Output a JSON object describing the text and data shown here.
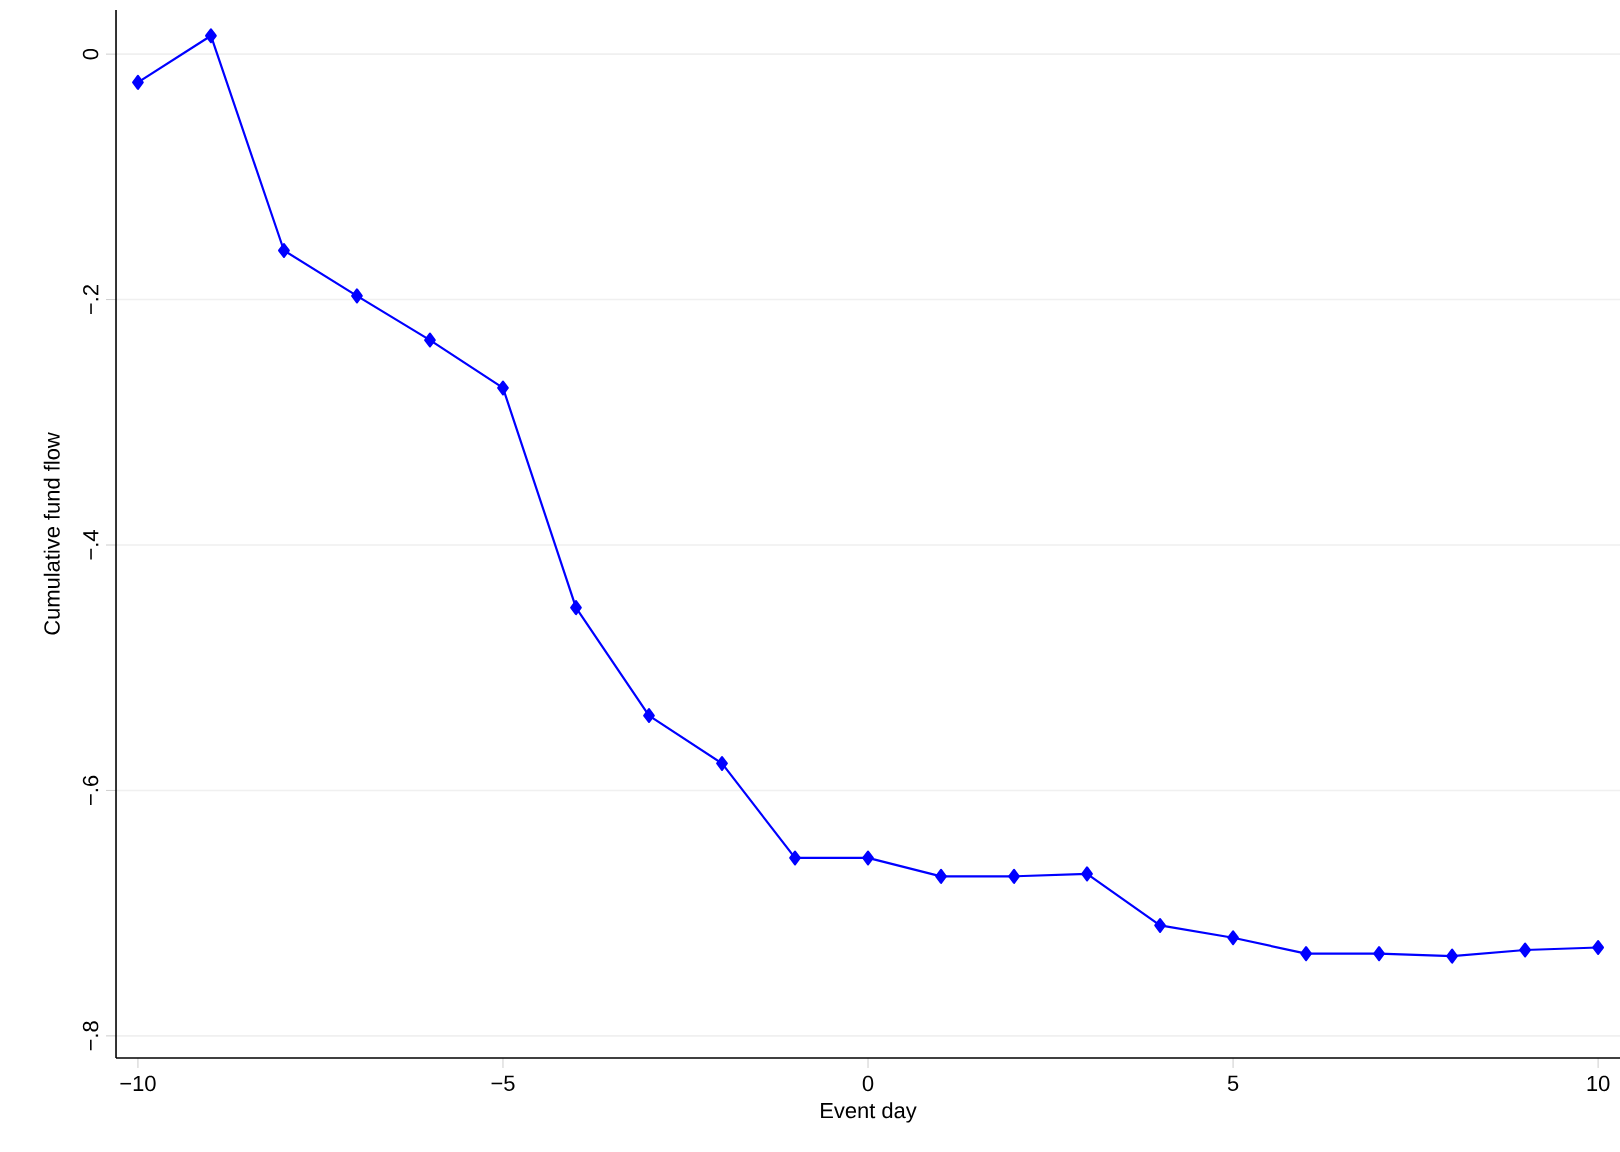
{
  "chart_data": {
    "type": "line",
    "xlabel": "Event day",
    "ylabel": "Cumulative fund flow",
    "x": [
      -10,
      -9,
      -8,
      -7,
      -6,
      -5,
      -4,
      -3,
      -2,
      -1,
      0,
      1,
      2,
      3,
      4,
      5,
      6,
      7,
      8,
      9,
      10
    ],
    "series": [
      {
        "color": "#0000ff",
        "values": [
          -0.023,
          0.015,
          -0.16,
          -0.197,
          -0.233,
          -0.272,
          -0.451,
          -0.539,
          -0.578,
          -0.655,
          -0.655,
          -0.67,
          -0.67,
          -0.668,
          -0.71,
          -0.72,
          -0.733,
          -0.733,
          -0.735,
          -0.73,
          -0.728
        ]
      }
    ],
    "marker": "diamond",
    "line_style": "solid",
    "grid": "y",
    "xlim": [
      -10.3,
      10.3
    ],
    "ylim": [
      -0.818,
      0.036
    ],
    "xticks": [
      {
        "value": -10,
        "label": "−10"
      },
      {
        "value": -5,
        "label": "−5"
      },
      0,
      5,
      10
    ],
    "yticks": [
      {
        "value": -0.8,
        "label": "−.8"
      },
      {
        "value": -0.6,
        "label": "−.6"
      },
      {
        "value": -0.4,
        "label": "−.4"
      },
      {
        "value": -0.2,
        "label": "−.2"
      },
      0
    ]
  }
}
